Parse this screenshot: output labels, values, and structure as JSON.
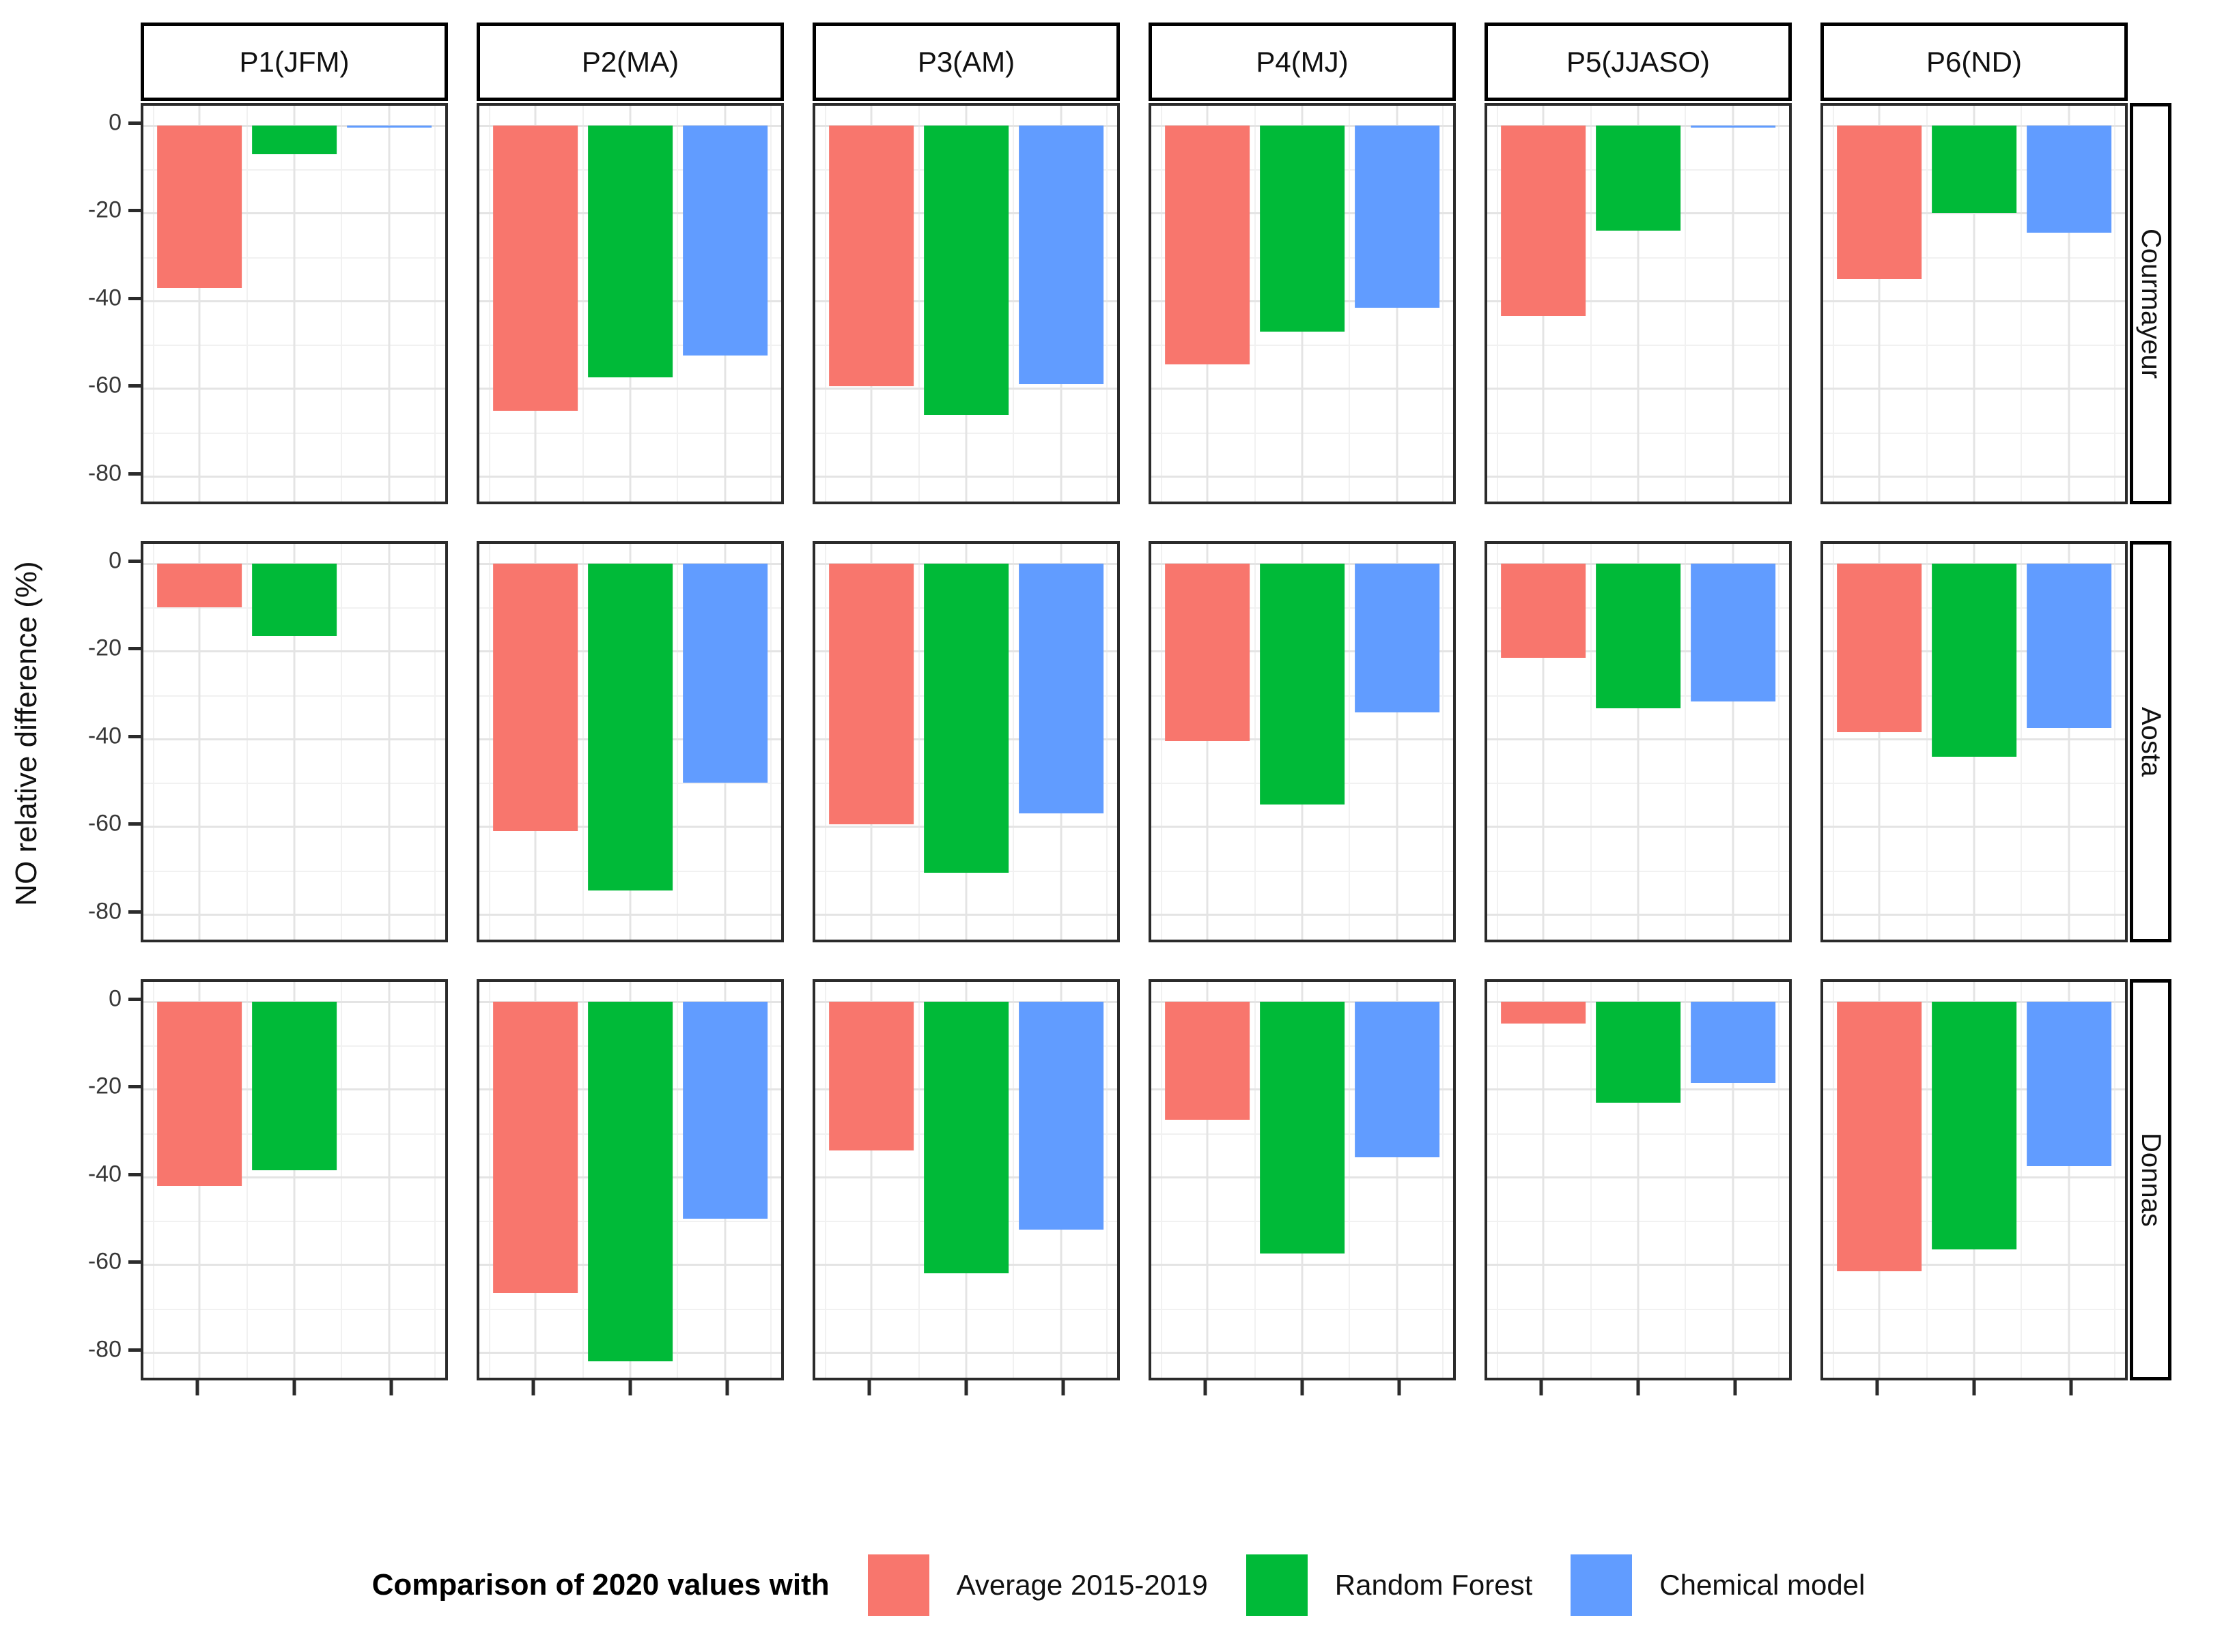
{
  "chart_data": {
    "type": "bar",
    "title": "",
    "ylabel": "NO relative difference (%)",
    "legend_title": "Comparison of 2020 values with",
    "legend_position": "bottom",
    "grid": true,
    "facet_columns": [
      "P1(JFM)",
      "P2(MA)",
      "P3(AM)",
      "P4(MJ)",
      "P5(JJASO)",
      "P6(ND)"
    ],
    "facet_rows": [
      "Courmayeur",
      "Aosta",
      "Donnas"
    ],
    "series": [
      {
        "name": "Average 2015-2019",
        "color": "#F8766D"
      },
      {
        "name": "Random Forest",
        "color": "#00BA38"
      },
      {
        "name": "Chemical model",
        "color": "#619CFF"
      }
    ],
    "y_ticks": [
      0,
      -20,
      -40,
      -60,
      -80
    ],
    "y_minor_ticks": [
      -10,
      -30,
      -50,
      -70
    ],
    "ylim": [
      4.5,
      -87
    ],
    "values": {
      "Courmayeur": [
        [
          -37,
          -6.5,
          -0.5
        ],
        [
          -65,
          -57.5,
          -52.5
        ],
        [
          -59.5,
          -66,
          -59
        ],
        [
          -54.5,
          -47,
          -41.5
        ],
        [
          -43.5,
          -24,
          -0.5
        ],
        [
          -35,
          -20,
          -24.5
        ]
      ],
      "Aosta": [
        [
          -10,
          -16.5,
          0
        ],
        [
          -61,
          -74.5,
          -50
        ],
        [
          -59.5,
          -70.5,
          -57
        ],
        [
          -40.5,
          -55,
          -34
        ],
        [
          -21.5,
          -33,
          -31.5
        ],
        [
          -38.5,
          -44,
          -37.5
        ]
      ],
      "Donnas": [
        [
          -42,
          -38.5,
          0
        ],
        [
          -66.5,
          -82,
          -49.5
        ],
        [
          -34,
          -62,
          -52
        ],
        [
          -27,
          -57.5,
          -35.5
        ],
        [
          -5,
          -23,
          -18.5
        ],
        [
          -61.5,
          -56.5,
          -37.5
        ]
      ]
    }
  }
}
